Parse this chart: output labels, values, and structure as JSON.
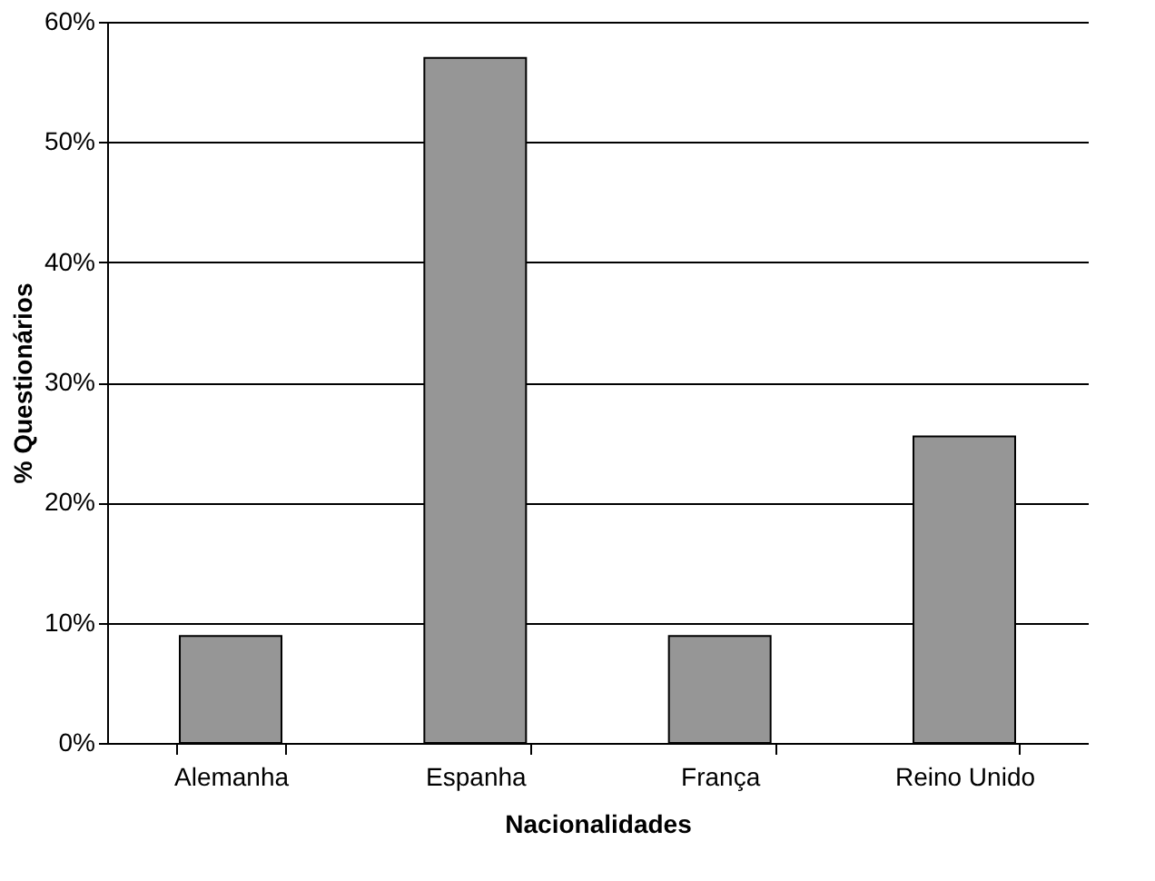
{
  "chart_data": {
    "type": "bar",
    "xlabel": "Nacionalidades",
    "ylabel": "% Questionários",
    "categories": [
      "Alemanha",
      "Espanha",
      "França",
      "Reino Unido"
    ],
    "values": [
      8.9,
      57,
      8.9,
      25.5
    ],
    "color": "#969696",
    "ylim": [
      0,
      60
    ],
    "yticks": [
      {
        "value": 0,
        "label": "0%"
      },
      {
        "value": 10,
        "label": "10%"
      },
      {
        "value": 20,
        "label": "20%"
      },
      {
        "value": 30,
        "label": "30%"
      },
      {
        "value": 40,
        "label": "40%"
      },
      {
        "value": 50,
        "label": "50%"
      },
      {
        "value": 60,
        "label": "60%"
      }
    ],
    "grid": "y"
  }
}
